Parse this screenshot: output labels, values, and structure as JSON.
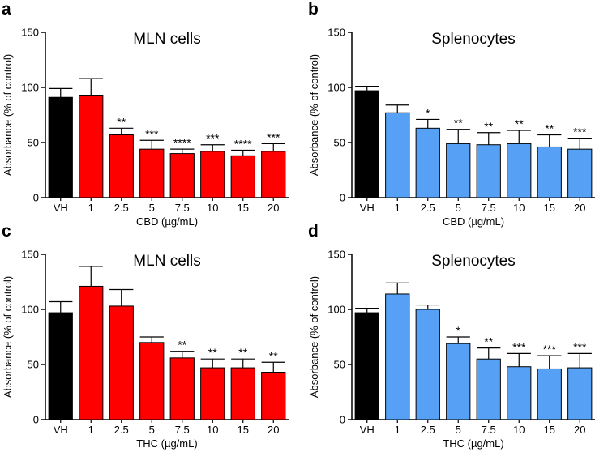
{
  "chart_data": [
    {
      "type": "bar",
      "panel": "a",
      "title": "MLN cells",
      "xlabel": "CBD (µg/mL)",
      "ylabel": "Absorbance (% of control)",
      "ylim": [
        0,
        150
      ],
      "yticks": [
        0,
        50,
        100,
        150
      ],
      "categories": [
        "VH",
        "1",
        "2.5",
        "5",
        "7.5",
        "10",
        "15",
        "20"
      ],
      "values": [
        91,
        93,
        57,
        44,
        40,
        42,
        38,
        42
      ],
      "errors": [
        8,
        15,
        6,
        8,
        4,
        6,
        5,
        7
      ],
      "significance": [
        "",
        "",
        "**",
        "***",
        "****",
        "***",
        "****",
        "***"
      ],
      "colors": [
        "#000000",
        "#ff0000",
        "#ff0000",
        "#ff0000",
        "#ff0000",
        "#ff0000",
        "#ff0000",
        "#ff0000"
      ]
    },
    {
      "type": "bar",
      "panel": "b",
      "title": "Splenocytes",
      "xlabel": "CBD (µg/mL)",
      "ylabel": "Absorbance (% of control)",
      "ylim": [
        0,
        150
      ],
      "yticks": [
        0,
        50,
        100,
        150
      ],
      "categories": [
        "VH",
        "1",
        "2.5",
        "5",
        "7.5",
        "10",
        "15",
        "20"
      ],
      "values": [
        97,
        77,
        63,
        49,
        48,
        49,
        46,
        44
      ],
      "errors": [
        4,
        7,
        8,
        13,
        11,
        12,
        11,
        10
      ],
      "significance": [
        "",
        "",
        "*",
        "**",
        "**",
        "**",
        "**",
        "***"
      ],
      "colors": [
        "#000000",
        "#56a0f5",
        "#56a0f5",
        "#56a0f5",
        "#56a0f5",
        "#56a0f5",
        "#56a0f5",
        "#56a0f5"
      ]
    },
    {
      "type": "bar",
      "panel": "c",
      "title": "MLN cells",
      "xlabel": "THC (µg/mL)",
      "ylabel": "Absorbance (% of control)",
      "ylim": [
        0,
        150
      ],
      "yticks": [
        0,
        50,
        100,
        150
      ],
      "categories": [
        "VH",
        "1",
        "2.5",
        "5",
        "7.5",
        "10",
        "15",
        "20"
      ],
      "values": [
        97,
        121,
        103,
        70,
        56,
        47,
        47,
        43
      ],
      "errors": [
        10,
        18,
        15,
        5,
        6,
        8,
        8,
        9
      ],
      "significance": [
        "",
        "",
        "",
        "",
        "**",
        "**",
        "**",
        "**"
      ],
      "colors": [
        "#000000",
        "#ff0000",
        "#ff0000",
        "#ff0000",
        "#ff0000",
        "#ff0000",
        "#ff0000",
        "#ff0000"
      ]
    },
    {
      "type": "bar",
      "panel": "d",
      "title": "Splenocytes",
      "xlabel": "THC (µg/mL)",
      "ylabel": "Absorbance (% of control)",
      "ylim": [
        0,
        150
      ],
      "yticks": [
        0,
        50,
        100,
        150
      ],
      "categories": [
        "VH",
        "1",
        "2.5",
        "5",
        "7.5",
        "10",
        "15",
        "20"
      ],
      "values": [
        97,
        114,
        100,
        69,
        55,
        48,
        46,
        47
      ],
      "errors": [
        4,
        10,
        4,
        6,
        10,
        12,
        12,
        13
      ],
      "significance": [
        "",
        "",
        "",
        "*",
        "**",
        "***",
        "***",
        "***"
      ],
      "colors": [
        "#000000",
        "#56a0f5",
        "#56a0f5",
        "#56a0f5",
        "#56a0f5",
        "#56a0f5",
        "#56a0f5",
        "#56a0f5"
      ]
    }
  ]
}
